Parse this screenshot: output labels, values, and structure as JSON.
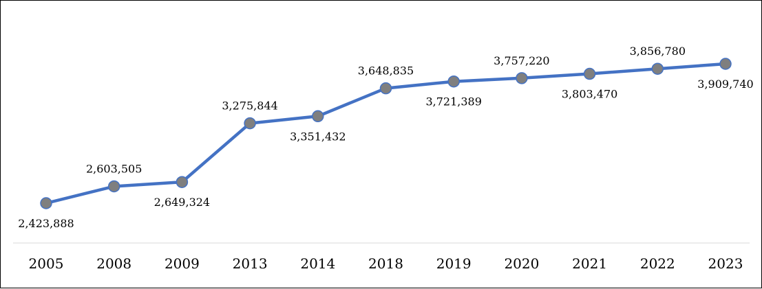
{
  "chart_data": {
    "type": "line",
    "categories": [
      "2005",
      "2008",
      "2009",
      "2013",
      "2014",
      "2018",
      "2019",
      "2020",
      "2021",
      "2022",
      "2023"
    ],
    "values": [
      2423888,
      2603505,
      2649324,
      3275844,
      3351432,
      3648835,
      3721389,
      3757220,
      3803470,
      3856780,
      3909740
    ],
    "value_labels": [
      "2,423,888",
      "2,603,505",
      "2,649,324",
      "3,275,844",
      "3,351,432",
      "3,648,835",
      "3,721,389",
      "3,757,220",
      "3,803,470",
      "3,856,780",
      "3,909,740"
    ],
    "label_positions": [
      "below",
      "above",
      "below",
      "above",
      "below",
      "above",
      "below",
      "above",
      "below",
      "above",
      "below"
    ],
    "title": "",
    "xlabel": "",
    "ylabel": "",
    "grid": false,
    "legend": "none",
    "colors": {
      "line": "#4472C4",
      "marker_fill": "#7F7F7F",
      "marker_stroke": "#4472C4",
      "axis": "#D9D9D9",
      "text": "#000000"
    }
  }
}
